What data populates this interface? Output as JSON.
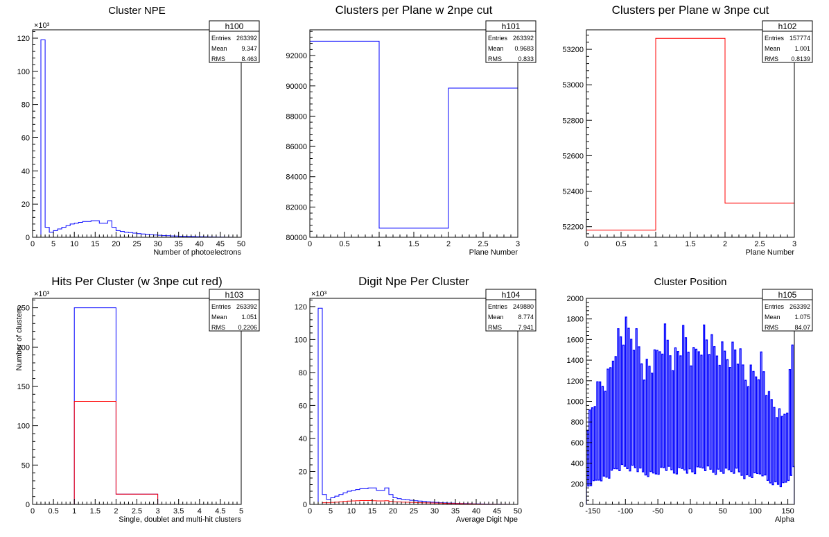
{
  "chart_data": [
    {
      "type": "histogram",
      "title": "Cluster NPE",
      "xlabel": "Number of photoelectrons",
      "ylabel": "",
      "xlim": [
        0,
        50
      ],
      "ylim": [
        0,
        125
      ],
      "yexp": "×10³",
      "xticks": [
        0,
        5,
        10,
        15,
        20,
        25,
        30,
        35,
        40,
        45,
        50
      ],
      "yticks": [
        0,
        20,
        40,
        60,
        80,
        100,
        120
      ],
      "stats": {
        "name": "h100",
        "Entries": "263392",
        "Mean": "9.347",
        "RMS": "8.463"
      },
      "series": [
        {
          "color": "#0000ff",
          "edges": [
            0,
            1,
            2,
            3,
            4,
            5,
            6,
            7,
            8,
            9,
            10,
            11,
            12,
            13,
            14,
            15,
            16,
            17,
            18,
            19,
            20,
            21,
            22,
            23,
            24,
            25,
            26,
            27,
            28,
            29,
            30,
            31,
            32,
            33,
            34,
            35,
            36,
            37,
            38,
            39,
            40,
            41,
            42,
            43,
            44,
            45,
            46,
            47,
            48,
            49,
            50
          ],
          "values": [
            0,
            0,
            119,
            6,
            3,
            4,
            5,
            6,
            7,
            8,
            8.5,
            9,
            9.5,
            9.5,
            10,
            10,
            8.5,
            8.5,
            10,
            6,
            4,
            3.5,
            3,
            2.8,
            2.5,
            2.2,
            2,
            1.8,
            1.6,
            1.4,
            1.2,
            1,
            0.9,
            0.8,
            0.7,
            0.6,
            0.5,
            0.45,
            0.4,
            0.35,
            0.3,
            0.25,
            0.2,
            0.15,
            0.1,
            0.08,
            0.05,
            0.03,
            0.02,
            0.01
          ]
        }
      ]
    },
    {
      "type": "histogram",
      "title": "Clusters per Plane w 2npe cut",
      "xlabel": "Plane Number",
      "ylabel": "",
      "xlim": [
        0,
        3
      ],
      "ylim": [
        80000,
        93700
      ],
      "xticks": [
        0,
        0.5,
        1,
        1.5,
        2,
        2.5,
        3
      ],
      "yticks": [
        80000,
        82000,
        84000,
        86000,
        88000,
        90000,
        92000
      ],
      "stats": {
        "name": "h101",
        "Entries": "263392",
        "Mean": "0.9683",
        "RMS": "0.833"
      },
      "series": [
        {
          "color": "#0000ff",
          "edges": [
            0,
            1,
            2,
            3
          ],
          "values": [
            92950,
            80600,
            89850
          ]
        }
      ]
    },
    {
      "type": "histogram",
      "title": "Clusters per Plane w 3npe cut",
      "xlabel": "Plane Number",
      "ylabel": "",
      "xlim": [
        0,
        3
      ],
      "ylim": [
        52140,
        53310
      ],
      "xticks": [
        0,
        0.5,
        1,
        1.5,
        2,
        2.5,
        3
      ],
      "yticks": [
        52200,
        52400,
        52600,
        52800,
        53000,
        53200
      ],
      "stats": {
        "name": "h102",
        "Entries": "157774",
        "Mean": "1.001",
        "RMS": "0.8139"
      },
      "series": [
        {
          "color": "#ff0000",
          "edges": [
            0,
            1,
            2,
            3
          ],
          "values": [
            52180,
            53262,
            52332
          ]
        }
      ]
    },
    {
      "type": "histogram",
      "title": "Hits Per Cluster (w 3npe cut red)",
      "xlabel": "Single, doublet and multi-hit clusters",
      "ylabel": "Number of clusters",
      "xlim": [
        0,
        5
      ],
      "ylim": [
        0,
        262
      ],
      "yexp": "×10³",
      "xticks": [
        0,
        0.5,
        1,
        1.5,
        2,
        2.5,
        3,
        3.5,
        4,
        4.5,
        5
      ],
      "yticks": [
        0,
        50,
        100,
        150,
        200,
        250
      ],
      "stats": {
        "name": "h103",
        "Entries": "263392",
        "Mean": "1.051",
        "RMS": "0.2206"
      },
      "series": [
        {
          "color": "#0000ff",
          "edges": [
            0,
            1,
            2,
            3,
            5
          ],
          "values": [
            0,
            250,
            13,
            0
          ]
        },
        {
          "color": "#ff0000",
          "edges": [
            0,
            1,
            2,
            3,
            5
          ],
          "values": [
            0,
            131,
            13,
            0
          ]
        }
      ]
    },
    {
      "type": "histogram",
      "title": "Digit Npe Per Cluster",
      "xlabel": "Average Digit Npe",
      "ylabel": "",
      "xlim": [
        0,
        50
      ],
      "ylim": [
        0,
        125
      ],
      "yexp": "×10³",
      "xticks": [
        0,
        5,
        10,
        15,
        20,
        25,
        30,
        35,
        40,
        45,
        50
      ],
      "yticks": [
        0,
        20,
        40,
        60,
        80,
        100,
        120
      ],
      "stats": {
        "name": "h104",
        "Entries": "249880",
        "Mean": "8.774",
        "RMS": "7.941"
      },
      "series": [
        {
          "color": "#0000ff",
          "edges": [
            0,
            1,
            2,
            3,
            4,
            5,
            6,
            7,
            8,
            9,
            10,
            11,
            12,
            13,
            14,
            15,
            16,
            17,
            18,
            19,
            20,
            21,
            22,
            23,
            24,
            25,
            26,
            27,
            28,
            29,
            30,
            31,
            32,
            33,
            34,
            35,
            36,
            37,
            38,
            39,
            40,
            41,
            42,
            43,
            44,
            45,
            46,
            47,
            48,
            49,
            50
          ],
          "values": [
            0,
            0,
            119,
            6,
            3,
            4,
            5,
            6,
            7,
            8,
            8.5,
            9,
            9.5,
            9.5,
            10,
            10,
            8.5,
            8.5,
            10,
            6,
            4,
            3.5,
            3,
            2.8,
            2.5,
            2.2,
            2,
            1.8,
            1.6,
            1.4,
            1.2,
            1,
            0.9,
            0.8,
            0.7,
            0.6,
            0.5,
            0.45,
            0.4,
            0.35,
            0.3,
            0.25,
            0.2,
            0.15,
            0.1,
            0.08,
            0.05,
            0.03,
            0.02,
            0.01
          ]
        },
        {
          "color": "#ff0000",
          "edges": [
            0,
            1,
            2,
            3,
            4,
            5,
            6,
            7,
            8,
            9,
            10,
            11,
            12,
            13,
            14,
            15,
            16,
            17,
            18,
            19,
            20,
            21,
            22,
            23,
            24,
            25,
            26,
            27,
            28,
            29,
            30,
            31,
            32,
            33,
            34,
            35,
            36,
            37,
            38,
            39,
            40,
            41,
            42,
            43,
            44,
            45,
            46,
            47,
            48,
            49,
            50
          ],
          "values": [
            0,
            0,
            0,
            1,
            1,
            1.2,
            1.4,
            1.6,
            1.8,
            2,
            2.1,
            2.2,
            2.3,
            2.3,
            2.3,
            2.2,
            2.1,
            2.1,
            2.2,
            1.8,
            1.6,
            1.5,
            1.4,
            1.3,
            1.2,
            1.1,
            1,
            0.95,
            0.9,
            0.85,
            0.8,
            0.7,
            0.6,
            0.55,
            0.5,
            0.45,
            0.4,
            0.35,
            0.3,
            0.25,
            0.2,
            0.15,
            0.12,
            0.1,
            0.08,
            0.06,
            0.04,
            0.03,
            0.02,
            0.01
          ]
        }
      ]
    },
    {
      "type": "histogram",
      "title": "Cluster Position",
      "xlabel": "Alpha",
      "ylabel": "",
      "xlim": [
        -160,
        160
      ],
      "ylim": [
        0,
        2000
      ],
      "xticks": [
        -150,
        -100,
        -50,
        0,
        50,
        100,
        150
      ],
      "yticks": [
        0,
        200,
        400,
        600,
        800,
        1000,
        1200,
        1400,
        1600,
        1800,
        2000
      ],
      "stats": {
        "name": "h105",
        "Entries": "263392",
        "Mean": "1.075",
        "RMS": "84.07"
      },
      "series": [
        {
          "color": "#0000ff",
          "generator": "alternating",
          "binWidth": 2,
          "envelope": [
            [
              -160,
              850
            ],
            [
              -140,
              1250
            ],
            [
              -125,
              1350
            ],
            [
              -115,
              1750
            ],
            [
              -100,
              1820
            ],
            [
              -85,
              1780
            ],
            [
              -70,
              1450
            ],
            [
              -55,
              1500
            ],
            [
              -40,
              1800
            ],
            [
              -25,
              1550
            ],
            [
              -10,
              1750
            ],
            [
              5,
              1550
            ],
            [
              20,
              1820
            ],
            [
              35,
              1620
            ],
            [
              55,
              1600
            ],
            [
              70,
              1650
            ],
            [
              85,
              1350
            ],
            [
              100,
              1400
            ],
            [
              110,
              1550
            ],
            [
              120,
              1100
            ],
            [
              130,
              1050
            ],
            [
              140,
              900
            ],
            [
              150,
              1100
            ],
            [
              157,
              1700
            ],
            [
              160,
              1700
            ]
          ],
          "lowFactor": 0.22
        }
      ]
    }
  ]
}
